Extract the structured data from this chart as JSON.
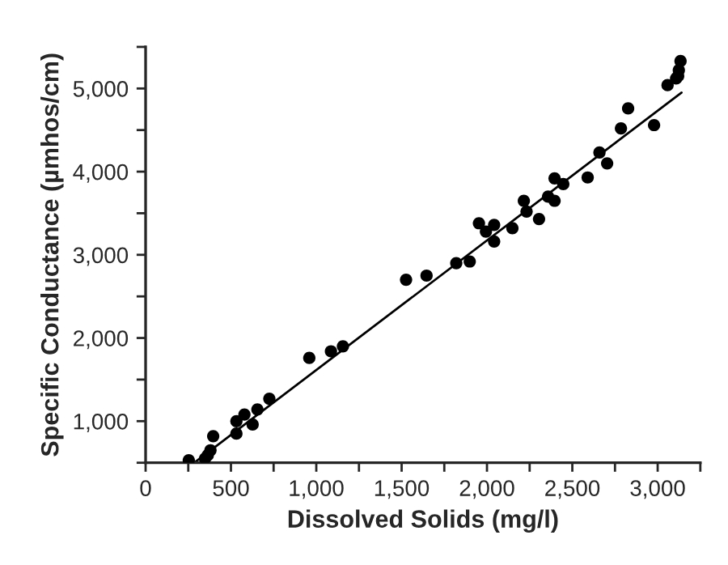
{
  "chart_data": {
    "type": "scatter",
    "xlabel": "Dissolved Solids (mg/l)",
    "ylabel": "Specific Conductance (µmhos/cm)",
    "grid": false,
    "xlim": [
      0,
      3250
    ],
    "ylim": [
      500,
      5500
    ],
    "xticks": [
      0,
      {
        "value": 250,
        "label": null
      },
      {
        "value": 500,
        "label": "500"
      },
      {
        "value": 750,
        "label": null
      },
      {
        "value": 1000,
        "label": "1,000"
      },
      {
        "value": 1250,
        "label": null
      },
      {
        "value": 1500,
        "label": "1,500"
      },
      {
        "value": 1750,
        "label": null
      },
      {
        "value": 2000,
        "label": "2,000"
      },
      {
        "value": 2250,
        "label": null
      },
      {
        "value": 2500,
        "label": "2,500"
      },
      {
        "value": 2750,
        "label": null
      },
      {
        "value": 3000,
        "label": "3,000"
      },
      {
        "value": 3250,
        "label": null
      }
    ],
    "yticks": [
      {
        "value": 500,
        "label": null
      },
      {
        "value": 1000,
        "label": "1,000"
      },
      {
        "value": 1500,
        "label": null
      },
      {
        "value": 2000,
        "label": "2,000"
      },
      {
        "value": 2500,
        "label": null
      },
      {
        "value": 3000,
        "label": "3,000"
      },
      {
        "value": 3500,
        "label": null
      },
      {
        "value": 4000,
        "label": "4,000"
      },
      {
        "value": 4500,
        "label": null
      },
      {
        "value": 5000,
        "label": "5,000"
      },
      {
        "value": 5500,
        "label": null
      }
    ],
    "series": [
      {
        "marker": "circle",
        "color": "#000000",
        "x": [
          253,
          348,
          364,
          380,
          396,
          532,
          532,
          579,
          627,
          655,
          725,
          959,
          1086,
          1156,
          1526,
          1646,
          1820,
          1899,
          1953,
          1994,
          2042,
          2042,
          2149,
          2216,
          2232,
          2305,
          2358,
          2396,
          2396,
          2447,
          2590,
          2659,
          2704,
          2785,
          2827,
          2979,
          3058,
          3108,
          3120,
          3124,
          3134
        ],
        "values": [
          530,
          550,
          590,
          650,
          820,
          850,
          1000,
          1080,
          960,
          1140,
          1270,
          1760,
          1840,
          1900,
          2700,
          2750,
          2900,
          2920,
          3380,
          3280,
          3360,
          3160,
          3320,
          3650,
          3520,
          3430,
          3700,
          3650,
          3920,
          3850,
          3930,
          4230,
          4100,
          4520,
          4760,
          4560,
          5040,
          5120,
          5150,
          5220,
          5330
        ]
      },
      {
        "type": "line",
        "color": "#000000",
        "x": [
          285,
          3140
        ],
        "marker": "none",
        "values": [
          500,
          4950
        ]
      }
    ]
  }
}
